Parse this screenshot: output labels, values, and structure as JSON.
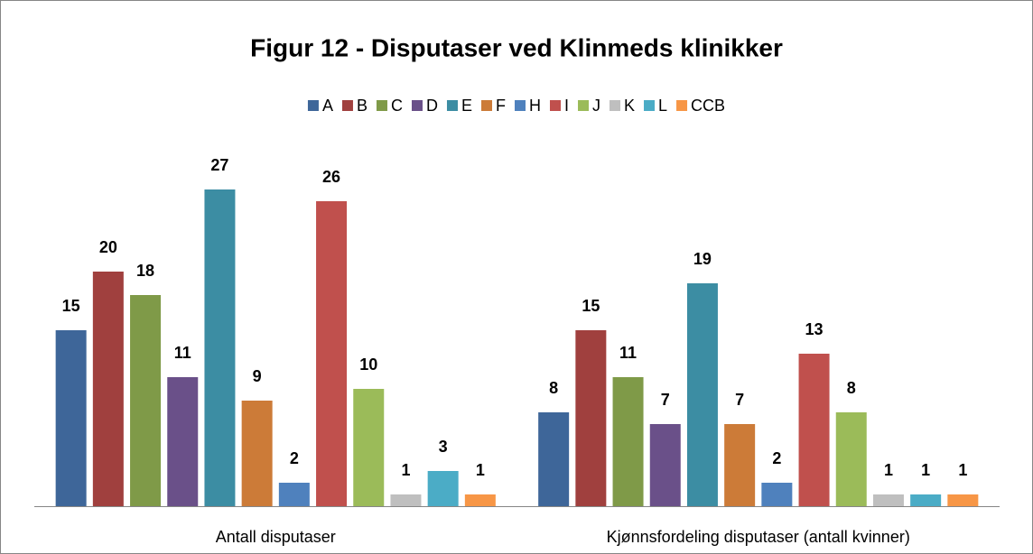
{
  "chart_data": {
    "type": "bar",
    "title": "Figur 12 - Disputaser ved Klinmeds klinikker",
    "categories": [
      "Antall disputaser",
      "Kjønnsfordeling disputaser (antall kvinner)"
    ],
    "series": [
      {
        "name": "A",
        "color": "#3e6699",
        "values": [
          15,
          8
        ]
      },
      {
        "name": "B",
        "color": "#a0403e",
        "values": [
          20,
          15
        ]
      },
      {
        "name": "C",
        "color": "#7f9a48",
        "values": [
          18,
          11
        ]
      },
      {
        "name": "D",
        "color": "#6a5089",
        "values": [
          11,
          7
        ]
      },
      {
        "name": "E",
        "color": "#3c8da3",
        "values": [
          27,
          19
        ]
      },
      {
        "name": "F",
        "color": "#cc7b38",
        "values": [
          9,
          7
        ]
      },
      {
        "name": "H",
        "color": "#4f81bd",
        "values": [
          2,
          2
        ]
      },
      {
        "name": "I",
        "color": "#c0504d",
        "values": [
          26,
          13
        ]
      },
      {
        "name": "J",
        "color": "#9bbb59",
        "values": [
          10,
          8
        ]
      },
      {
        "name": "K",
        "color": "#bfbfbf",
        "values": [
          1,
          1
        ]
      },
      {
        "name": "L",
        "color": "#4bacc6",
        "values": [
          3,
          1
        ]
      },
      {
        "name": "CCB",
        "color": "#f79646",
        "values": [
          1,
          1
        ]
      }
    ],
    "legend": "top"
  }
}
